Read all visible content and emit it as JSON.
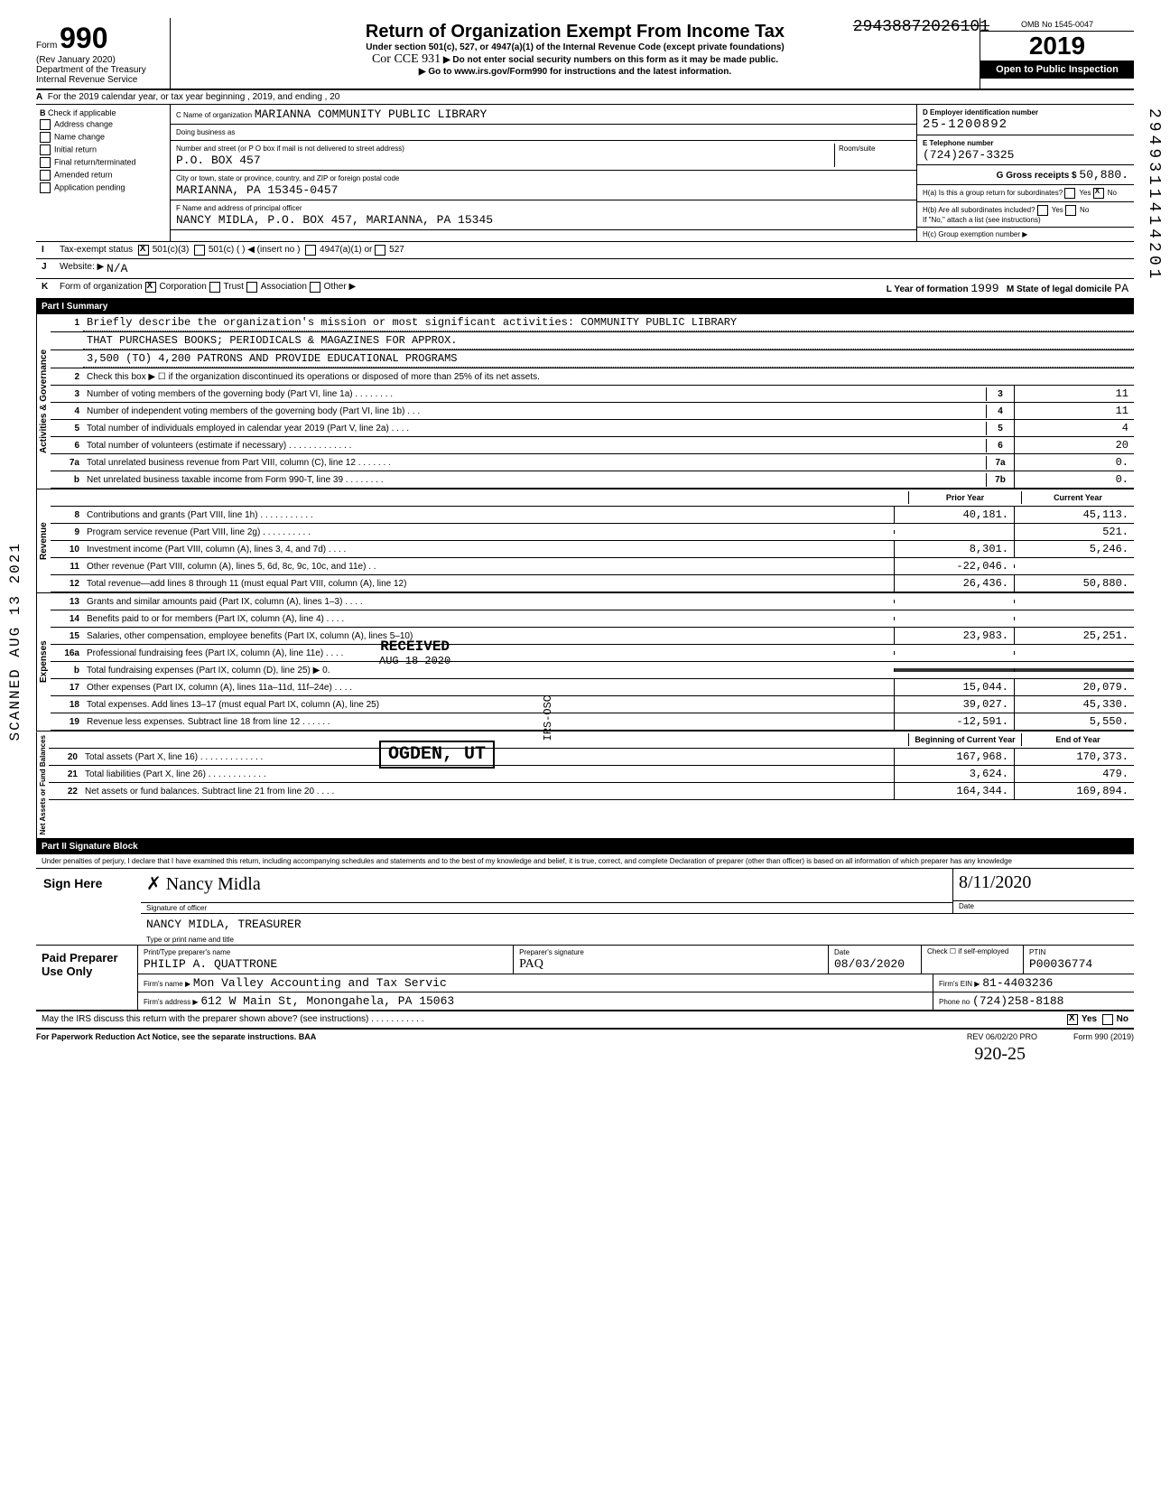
{
  "top_scribble": "29438872026101",
  "side_vertical_number": "2949311414201",
  "scanned_stamp": "SCANNED AUG 13 2021",
  "header": {
    "form_label": "Form",
    "form_number": "990",
    "rev": "(Rev January 2020)",
    "dept": "Department of the Treasury",
    "irs": "Internal Revenue Service",
    "title": "Return of Organization Exempt From Income Tax",
    "subtitle": "Under section 501(c), 527, or 4947(a)(1) of the Internal Revenue Code (except private foundations)",
    "note1": "▶ Do not enter social security numbers on this form as it may be made public.",
    "note2": "▶ Go to www.irs.gov/Form990 for instructions and the latest information.",
    "handwritten": "Cor CCE 931",
    "omb": "OMB No 1545-0047",
    "year": "2019",
    "open": "Open to Public Inspection"
  },
  "row_a": "For the 2019 calendar year, or tax year beginning                    , 2019, and ending                    , 20",
  "col_b": {
    "header": "Check if applicable",
    "items": [
      "Address change",
      "Name change",
      "Initial return",
      "Final return/terminated",
      "Amended return",
      "Application pending"
    ]
  },
  "col_c": {
    "name_label": "C Name of organization",
    "name": "MARIANNA COMMUNITY PUBLIC LIBRARY",
    "dba_label": "Doing business as",
    "dba": "",
    "street_label": "Number and street (or P O  box if mail is not delivered to street address)",
    "street": "P.O. BOX 457",
    "room_label": "Room/suite",
    "city_label": "City or town, state or province, country, and ZIP or foreign postal code",
    "city": "MARIANNA, PA 15345-0457",
    "officer_label": "F Name and address of principal officer",
    "officer": "NANCY MIDLA, P.O. BOX 457, MARIANNA, PA 15345"
  },
  "col_d": {
    "ein_label": "D Employer identification number",
    "ein": "25-1200892",
    "phone_label": "E Telephone number",
    "phone": "(724)267-3325",
    "gross_label": "G Gross receipts $",
    "gross": "50,880.",
    "ha_label": "H(a) Is this a group return for subordinates?",
    "ha_yes": "Yes",
    "ha_no": "No",
    "ha_checked": "No",
    "hb_label": "H(b) Are all subordinates included?",
    "hb_yes": "Yes",
    "hb_no": "No",
    "hb_note": "If \"No,\" attach a list (see instructions)",
    "hc_label": "H(c) Group exemption number ▶"
  },
  "status": {
    "i_label": "Tax-exempt status",
    "i_501c3": "501(c)(3)",
    "i_501c": "501(c) (        ) ◀ (insert no )",
    "i_4947": "4947(a)(1) or",
    "i_527": "527",
    "j_label": "Website: ▶",
    "j_val": "N/A",
    "k_label": "Form of organization",
    "k_corp": "Corporation",
    "k_trust": "Trust",
    "k_assoc": "Association",
    "k_other": "Other ▶",
    "l_label": "L Year of formation",
    "l_val": "1999",
    "m_label": "M State of legal domicile",
    "m_val": "PA"
  },
  "part1": {
    "header": "Part I    Summary",
    "sections": {
      "governance": {
        "label": "Activities & Governance",
        "lines": [
          {
            "n": "1",
            "desc": "Briefly describe the organization's mission or most significant activities:",
            "val": "COMMUNITY PUBLIC LIBRARY"
          },
          {
            "n": "",
            "desc": "THAT PURCHASES BOOKS; PERIODICALS & MAGAZINES FOR APPROX.",
            "val": ""
          },
          {
            "n": "",
            "desc": "3,500 (TO) 4,200 PATRONS AND PROVIDE EDUCATIONAL PROGRAMS",
            "val": ""
          },
          {
            "n": "2",
            "desc": "Check this box ▶ ☐ if the organization discontinued its operations or disposed of more than 25% of its net assets.",
            "val": ""
          },
          {
            "n": "3",
            "desc": "Number of voting members of the governing body (Part VI, line 1a) . . . . . . . .",
            "cell": "3",
            "val": "11"
          },
          {
            "n": "4",
            "desc": "Number of independent voting members of the governing body (Part VI, line 1b)  . . .",
            "cell": "4",
            "val": "11"
          },
          {
            "n": "5",
            "desc": "Total number of individuals employed in calendar year 2019 (Part V, line 2a)  . . . .",
            "cell": "5",
            "val": "4"
          },
          {
            "n": "6",
            "desc": "Total number of volunteers (estimate if necessary)  . . . . . . . . . . . . .",
            "cell": "6",
            "val": "20"
          },
          {
            "n": "7a",
            "desc": "Total unrelated business revenue from Part VIII, column (C), line 12  . . . . . . .",
            "cell": "7a",
            "val": "0."
          },
          {
            "n": "b",
            "desc": "Net unrelated business taxable income from Form 990-T, line 39  . . . . . . . .",
            "cell": "7b",
            "val": "0."
          }
        ]
      },
      "revenue": {
        "label": "Revenue",
        "col_head": {
          "prior": "Prior Year",
          "current": "Current Year"
        },
        "lines": [
          {
            "n": "8",
            "desc": "Contributions and grants (Part VIII, line 1h) . . . . . . . . . . .",
            "prior": "40,181.",
            "current": "45,113."
          },
          {
            "n": "9",
            "desc": "Program service revenue (Part VIII, line 2g)  . . . . . . . . . .",
            "prior": "",
            "current": "521."
          },
          {
            "n": "10",
            "desc": "Investment income (Part VIII, column (A), lines 3, 4, and 7d) . . . .",
            "prior": "8,301.",
            "current": "5,246."
          },
          {
            "n": "11",
            "desc": "Other revenue (Part VIII, column (A), lines 5, 6d, 8c, 9c, 10c, and 11e) . .",
            "prior": "-22,046.",
            "current": ""
          },
          {
            "n": "12",
            "desc": "Total revenue—add lines 8 through 11 (must equal Part VIII, column (A), line 12)",
            "prior": "26,436.",
            "current": "50,880."
          }
        ]
      },
      "expenses": {
        "label": "Expenses",
        "lines": [
          {
            "n": "13",
            "desc": "Grants and similar amounts paid (Part IX, column (A), lines 1–3) . . . .",
            "prior": "",
            "current": ""
          },
          {
            "n": "14",
            "desc": "Benefits paid to or for members (Part IX, column (A), line 4)  . . . .",
            "prior": "",
            "current": ""
          },
          {
            "n": "15",
            "desc": "Salaries, other compensation, employee benefits (Part IX, column (A), lines 5–10)",
            "prior": "23,983.",
            "current": "25,251."
          },
          {
            "n": "16a",
            "desc": "Professional fundraising fees (Part IX, column (A), line 11e)  . . . .",
            "prior": "",
            "current": ""
          },
          {
            "n": "b",
            "desc": "Total fundraising expenses (Part IX, column (D), line 25) ▶            0.",
            "prior": "shaded",
            "current": "shaded"
          },
          {
            "n": "17",
            "desc": "Other expenses (Part IX, column (A), lines 11a–11d, 11f–24e)  . . . .",
            "prior": "15,044.",
            "current": "20,079."
          },
          {
            "n": "18",
            "desc": "Total expenses. Add lines 13–17 (must equal Part IX, column (A), line 25)",
            "prior": "39,027.",
            "current": "45,330."
          },
          {
            "n": "19",
            "desc": "Revenue less expenses. Subtract line 18 from line 12 . . . . . .",
            "prior": "-12,591.",
            "current": "5,550."
          }
        ]
      },
      "net": {
        "label": "Net Assets or Fund Balances",
        "col_head": {
          "begin": "Beginning of Current Year",
          "end": "End of Year"
        },
        "lines": [
          {
            "n": "20",
            "desc": "Total assets (Part X, line 16)  . . . . . . . . . . . . .",
            "prior": "167,968.",
            "current": "170,373."
          },
          {
            "n": "21",
            "desc": "Total liabilities (Part X, line 26) . . . . . . . . . . . .",
            "prior": "3,624.",
            "current": "479."
          },
          {
            "n": "22",
            "desc": "Net assets or fund balances. Subtract line 21 from line 20  . . . .",
            "prior": "164,344.",
            "current": "169,894."
          }
        ]
      }
    },
    "received_stamp": "RECEIVED",
    "received_date": "AUG 18 2020",
    "ogden_stamp": "OGDEN, UT",
    "irs_osc": "IRS-OSC"
  },
  "part2": {
    "header": "Part II   Signature Block",
    "penalty": "Under penalties of perjury, I declare that I have examined this return, including accompanying schedules and statements and to the best of my knowledge and belief, it is true, correct, and complete Declaration of preparer (other than officer) is based on all information of which preparer has any knowledge",
    "sign_here": "Sign Here",
    "sig_officer": "Signature of officer",
    "sig_name_scribble": "Nancy Midla",
    "date_label": "Date",
    "date_scribble": "8/11/2020",
    "name_title": "NANCY MIDLA, TREASURER",
    "name_title_under": "Type or print name and title",
    "paid": {
      "label": "Paid Preparer Use Only",
      "print_label": "Print/Type preparer's name",
      "print_name": "PHILIP A. QUATTRONE",
      "sig_label": "Preparer's signature",
      "date_label": "Date",
      "date": "08/03/2020",
      "check_label": "Check ☐ if self-employed",
      "ptin_label": "PTIN",
      "ptin": "P00036774",
      "firm_label": "Firm's name   ▶",
      "firm": "Mon Valley Accounting and Tax Servic",
      "ein_label": "Firm's EIN ▶",
      "ein": "81-4403236",
      "addr_label": "Firm's address ▶",
      "addr": "612 W Main St, Monongahela, PA 15063",
      "phone_label": "Phone no",
      "phone": "(724)258-8188"
    },
    "discuss": "May the IRS discuss this return with the preparer shown above? (see instructions)  . . . . . . . . . . .",
    "discuss_yes": "Yes",
    "discuss_no": "No"
  },
  "footer": {
    "left": "For Paperwork Reduction Act Notice, see the separate instructions.  BAA",
    "mid": "REV 06/02/20 PRO",
    "right": "Form 990 (2019)",
    "scribble": "920-25"
  }
}
